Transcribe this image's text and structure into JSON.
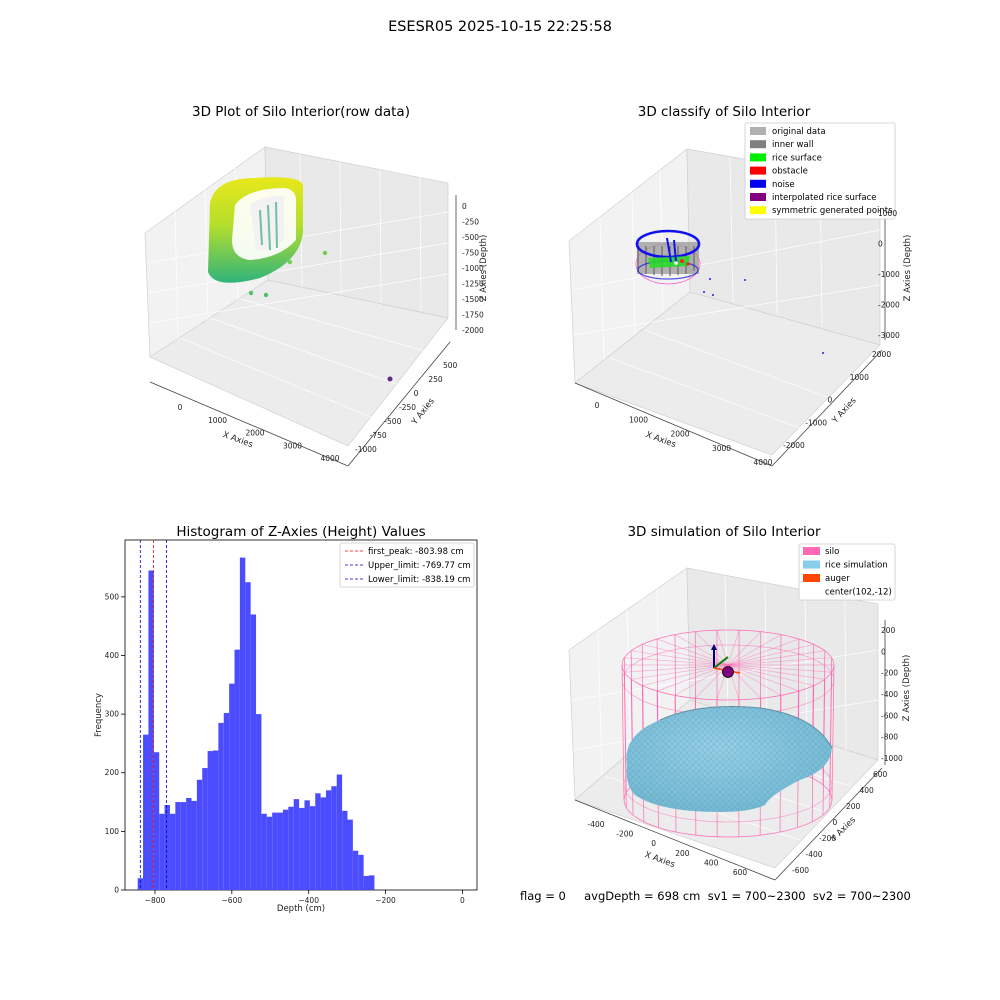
{
  "figure_title": "ESESR05 2025-10-15 22:25:58",
  "status_line": "flag = 0     avgDepth = 698 cm  sv1 = 700~2300  sv2 = 700~2300",
  "chart_data": [
    {
      "type": "scatter3d",
      "title": "3D Plot of Silo Interior(row data)",
      "xlabel": "X Axies",
      "ylabel": "Y Axies",
      "zlabel": "Z Axies (Depth)",
      "xticks": [
        "0",
        "1000",
        "2000",
        "3000",
        "4000"
      ],
      "yticks": [
        "-1000",
        "-750",
        "-500",
        "-250",
        "0",
        "250",
        "500"
      ],
      "zticks": [
        "0",
        "-250",
        "-500",
        "-750",
        "-1000",
        "-1250",
        "-1500",
        "-1750",
        "-2000"
      ],
      "colormap": "viridis",
      "outlier_points": [
        {
          "x": 1500,
          "y": 0,
          "z": -1200
        },
        {
          "x": 1800,
          "y": 0,
          "z": -1100
        },
        {
          "x": 3700,
          "y": -600,
          "z": -1900
        }
      ]
    },
    {
      "type": "scatter3d",
      "title": "3D classify of Silo Interior",
      "xlabel": "X Axies",
      "ylabel": "Y Axies",
      "zlabel": "Z Axies (Depth)",
      "xticks": [
        "0",
        "1000",
        "2000",
        "3000",
        "4000"
      ],
      "yticks": [
        "-2000",
        "-1000",
        "0",
        "1000",
        "2000"
      ],
      "zticks": [
        "1000",
        "0",
        "-1000",
        "-2000",
        "-3000"
      ],
      "legend": [
        {
          "label": "original data",
          "color": "#b0b0b0"
        },
        {
          "label": "inner wall",
          "color": "#808080"
        },
        {
          "label": "rice surface",
          "color": "#00ee00"
        },
        {
          "label": "obstacle",
          "color": "#ff0000"
        },
        {
          "label": "noise",
          "color": "#0000ee"
        },
        {
          "label": "interpolated rice surface",
          "color": "#800080"
        },
        {
          "label": "symmetric generated points",
          "color": "#ffff00"
        }
      ],
      "legend_position": "top-right"
    },
    {
      "type": "bar",
      "title": "Histogram of Z-Axies (Height) Values",
      "xlabel": "Depth (cm)",
      "ylabel": "Frequency",
      "xlim": [
        -878,
        38
      ],
      "ylim": [
        0,
        597
      ],
      "xticks": [
        -800,
        -600,
        -400,
        -200,
        0
      ],
      "yticks": [
        0,
        100,
        200,
        300,
        400,
        500
      ],
      "bin_width": 14,
      "bin_start": -845,
      "bar_color": "#4c4cff",
      "values": [
        20,
        265,
        545,
        235,
        130,
        145,
        130,
        150,
        150,
        157,
        152,
        188,
        208,
        237,
        238,
        285,
        302,
        352,
        410,
        567,
        525,
        470,
        300,
        130,
        125,
        132,
        132,
        137,
        142,
        155,
        140,
        153,
        143,
        165,
        158,
        170,
        177,
        197,
        135,
        120,
        67,
        60,
        24,
        25
      ],
      "vlines": [
        {
          "label": "first_peak: -803.98 cm",
          "x": -803.98,
          "color": "#ff0000"
        },
        {
          "label": "Upper_limit: -769.77 cm",
          "x": -769.77,
          "color": "#0000cc"
        },
        {
          "label": "Lower_limit: -838.19 cm",
          "x": -838.19,
          "color": "#0000cc"
        }
      ],
      "legend_position": "top-right"
    },
    {
      "type": "surface3d",
      "title": "3D simulation of Silo Interior",
      "xlabel": "X Axies",
      "ylabel": "Y Axies",
      "zlabel": "Z Axies (Depth)",
      "xticks": [
        "-400",
        "-200",
        "0",
        "200",
        "400",
        "600"
      ],
      "yticks": [
        "600",
        "400",
        "200",
        "0",
        "-200",
        "-400",
        "-600"
      ],
      "zticks": [
        "200",
        "0",
        "-200",
        "-400",
        "-600",
        "-800",
        "-1000"
      ],
      "legend": [
        {
          "label": "silo",
          "color": "#ff69b4"
        },
        {
          "label": "rice simulation",
          "color": "#87ceeb"
        },
        {
          "label": "auger",
          "color": "#ff4500"
        },
        {
          "label": "center(102,-12)",
          "color": ""
        }
      ],
      "legend_position": "top-right"
    }
  ]
}
